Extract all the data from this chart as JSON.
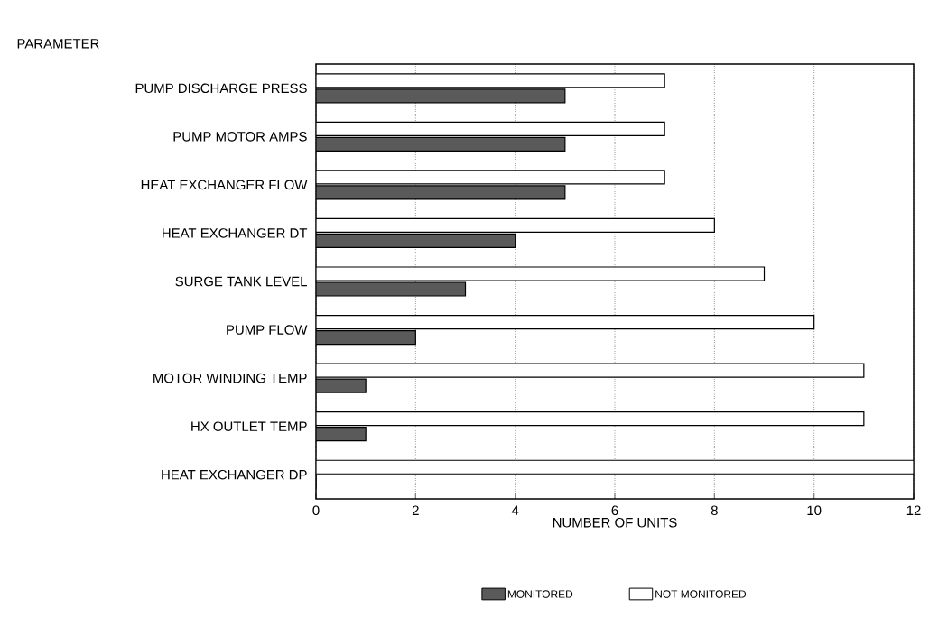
{
  "chart_data": {
    "type": "bar",
    "orientation": "horizontal",
    "ylabel": "PARAMETER",
    "xlabel": "NUMBER OF UNITS",
    "categories": [
      "PUMP DISCHARGE PRESS",
      "PUMP MOTOR AMPS",
      "HEAT EXCHANGER FLOW",
      "HEAT EXCHANGER DT",
      "SURGE TANK LEVEL",
      "PUMP FLOW",
      "MOTOR WINDING TEMP",
      "HX OUTLET TEMP",
      "HEAT EXCHANGER DP"
    ],
    "series": [
      {
        "name": "MONITORED",
        "color": "#5a5a5a",
        "values": [
          5,
          5,
          5,
          4,
          3,
          2,
          1,
          1,
          0
        ]
      },
      {
        "name": "NOT MONITORED",
        "color": "#ffffff",
        "values": [
          7,
          7,
          7,
          8,
          9,
          10,
          11,
          11,
          12
        ]
      }
    ],
    "xlim": [
      0,
      12
    ],
    "xticks": [
      0,
      2,
      4,
      6,
      8,
      10,
      12
    ],
    "grid": "x",
    "legend": "bottom"
  }
}
